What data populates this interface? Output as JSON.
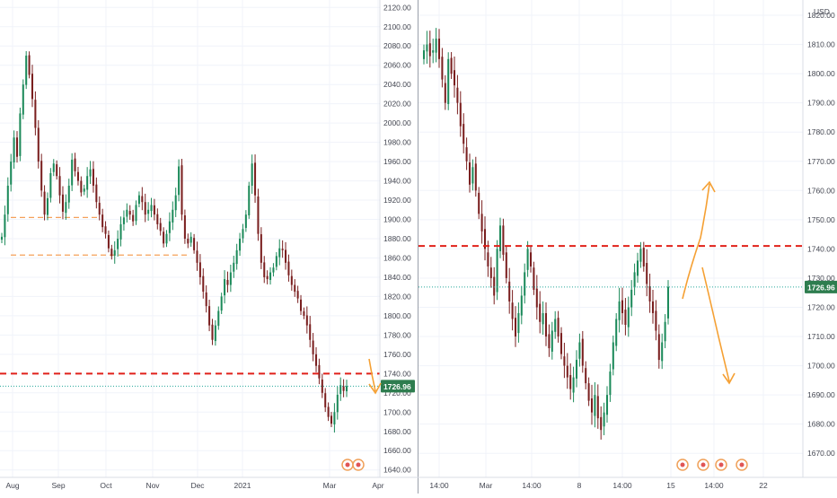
{
  "colors": {
    "up": "#1c8a5a",
    "down": "#7a1f1f",
    "grid": "#f0f3fa",
    "resistance": "#e0201a",
    "support": "#f5a05a",
    "arrow": "#f5a033",
    "price_badge": "#2e7d4f",
    "price_line": "#26a69a"
  },
  "chart_data": [
    {
      "type": "candlestick",
      "name": "left-panel",
      "x_ticks": [
        "Aug",
        "Sep",
        "Oct",
        "Nov",
        "Dec",
        "2021",
        "Mar",
        "Apr"
      ],
      "y_ticks": [
        "1640.00",
        "1660.00",
        "1680.00",
        "1700.00",
        "1720.00",
        "1740.00",
        "1760.00",
        "1780.00",
        "1800.00",
        "1820.00",
        "1840.00",
        "1860.00",
        "1880.00",
        "1900.00",
        "1920.00",
        "1940.00",
        "1960.00",
        "1980.00",
        "2000.00",
        "2020.00",
        "2040.00",
        "2060.00",
        "2080.00",
        "2100.00",
        "2120.00"
      ],
      "ylim": [
        1636,
        2124
      ],
      "last_price": "1726.96",
      "resistance_level": 1740,
      "support_levels": [
        1902,
        1863
      ],
      "close_series": [
        1882,
        1905,
        1935,
        1960,
        1985,
        1965,
        2010,
        2040,
        2070,
        2050,
        2025,
        1995,
        1960,
        1930,
        1905,
        1922,
        1948,
        1958,
        1945,
        1925,
        1908,
        1918,
        1935,
        1962,
        1950,
        1940,
        1928,
        1932,
        1945,
        1952,
        1935,
        1918,
        1905,
        1892,
        1885,
        1870,
        1862,
        1868,
        1880,
        1895,
        1902,
        1910,
        1905,
        1898,
        1915,
        1925,
        1918,
        1905,
        1910,
        1915,
        1905,
        1895,
        1888,
        1875,
        1885,
        1898,
        1910,
        1925,
        1955,
        1905,
        1880,
        1875,
        1882,
        1868,
        1855,
        1840,
        1825,
        1810,
        1790,
        1775,
        1790,
        1805,
        1820,
        1838,
        1832,
        1845,
        1855,
        1868,
        1880,
        1890,
        1905,
        1935,
        1958,
        1925,
        1885,
        1855,
        1840,
        1838,
        1845,
        1850,
        1862,
        1870,
        1868,
        1855,
        1842,
        1832,
        1825,
        1818,
        1805,
        1800,
        1790,
        1775,
        1760,
        1748,
        1735,
        1720,
        1705,
        1695,
        1688,
        1700,
        1718,
        1728,
        1722,
        1727
      ]
    },
    {
      "type": "candlestick",
      "name": "right-panel",
      "x_ticks": [
        "14:00",
        "Mar",
        "14:00",
        "8",
        "14:00",
        "15",
        "14:00",
        "22"
      ],
      "y_ticks": [
        "1670.00",
        "1680.00",
        "1690.00",
        "1700.00",
        "1710.00",
        "1720.00",
        "1730.00",
        "1740.00",
        "1750.00",
        "1760.00",
        "1770.00",
        "1780.00",
        "1790.00",
        "1800.00",
        "1810.00",
        "1820.00"
      ],
      "ylim": [
        1663,
        1824
      ],
      "currency": "USD",
      "last_price": "1726.96",
      "resistance_level": 1741,
      "close_series": [
        1808,
        1810,
        1806,
        1808,
        1812,
        1805,
        1798,
        1790,
        1805,
        1800,
        1796,
        1790,
        1782,
        1776,
        1770,
        1762,
        1768,
        1760,
        1752,
        1746,
        1740,
        1734,
        1730,
        1724,
        1740,
        1748,
        1738,
        1730,
        1722,
        1716,
        1710,
        1718,
        1724,
        1732,
        1740,
        1734,
        1726,
        1720,
        1715,
        1718,
        1710,
        1706,
        1712,
        1716,
        1710,
        1704,
        1700,
        1696,
        1692,
        1696,
        1702,
        1708,
        1700,
        1694,
        1688,
        1684,
        1690,
        1682,
        1678,
        1684,
        1690,
        1698,
        1708,
        1716,
        1722,
        1718,
        1714,
        1720,
        1726,
        1732,
        1736,
        1740,
        1734,
        1728,
        1722,
        1718,
        1712,
        1702,
        1708,
        1715,
        1727
      ]
    }
  ]
}
